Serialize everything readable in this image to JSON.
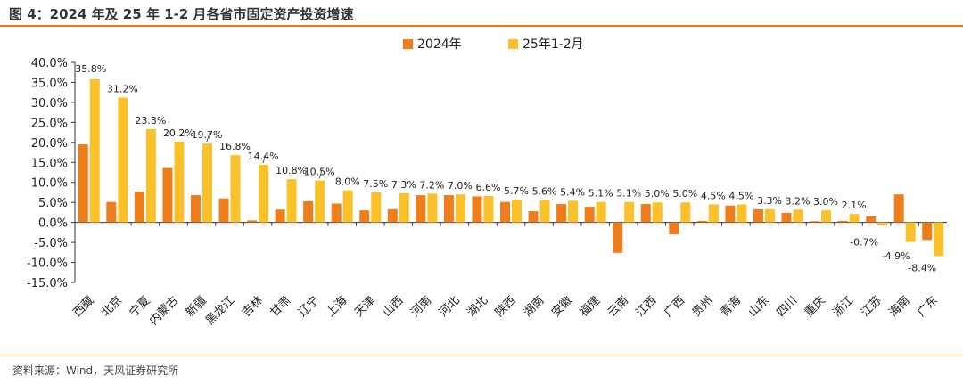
{
  "header": {
    "title": "图 4：2024 年及 25 年 1-2 月各省市固定资产投资增速"
  },
  "footer": {
    "source": "资料来源：Wind，天风证券研究所"
  },
  "chart_data": {
    "type": "bar",
    "title": "",
    "xlabel": "",
    "ylabel": "",
    "ylim": [
      -15,
      40
    ],
    "yticks": [
      "40.0%",
      "35.0%",
      "30.0%",
      "25.0%",
      "20.0%",
      "15.0%",
      "10.0%",
      "5.0%",
      "0.0%",
      "-5.0%",
      "-10.0%",
      "-15.0%"
    ],
    "ytick_values": [
      40,
      35,
      30,
      25,
      20,
      15,
      10,
      5,
      0,
      -5,
      -10,
      -15
    ],
    "grid": false,
    "legend_position": "top-center",
    "categories": [
      "西藏",
      "北京",
      "宁夏",
      "内蒙古",
      "新疆",
      "黑龙江",
      "吉林",
      "甘肃",
      "辽宁",
      "上海",
      "天津",
      "山西",
      "河南",
      "河北",
      "湖北",
      "陕西",
      "湖南",
      "安徽",
      "福建",
      "云南",
      "江西",
      "广西",
      "贵州",
      "青海",
      "山东",
      "四川",
      "重庆",
      "浙江",
      "江苏",
      "海南",
      "广东"
    ],
    "series": [
      {
        "name": "2024年",
        "color": "#ee7d1b",
        "values": [
          19.5,
          5.1,
          7.7,
          13.6,
          6.8,
          6.0,
          0.5,
          3.2,
          5.3,
          4.7,
          3.0,
          3.3,
          6.8,
          6.8,
          6.5,
          5.1,
          2.8,
          4.6,
          3.9,
          -7.6,
          4.6,
          -3.0,
          0.4,
          4.2,
          3.3,
          2.4,
          0.3,
          0.4,
          1.5,
          7.0,
          -4.4
        ]
      },
      {
        "name": "25年1-2月",
        "color": "#fcc02a",
        "values": [
          35.8,
          31.2,
          23.3,
          20.2,
          19.7,
          16.8,
          14.4,
          10.8,
          10.5,
          8.0,
          7.5,
          7.3,
          7.2,
          7.0,
          6.6,
          5.7,
          5.6,
          5.4,
          5.1,
          5.1,
          5.0,
          5.0,
          4.5,
          4.5,
          3.3,
          3.2,
          3.0,
          2.1,
          -0.7,
          -4.9,
          -8.4
        ]
      }
    ],
    "data_labels": [
      "35.8%",
      "31.2%",
      "23.3%",
      "20.2%",
      "19.7%",
      "16.8%",
      "14.4%",
      "10.8%",
      "10.5%",
      "8.0%",
      "7.5%",
      "7.3%",
      "7.2%",
      "7.0%",
      "6.6%",
      "5.7%",
      "5.6%",
      "5.4%",
      "5.1%",
      "5.1%",
      "5.0%",
      "5.0%",
      "4.5%",
      "4.5%",
      "3.3%",
      "3.2%",
      "3.0%",
      "2.1%",
      "-0.7%",
      "-4.9%",
      "-8.4%"
    ]
  }
}
